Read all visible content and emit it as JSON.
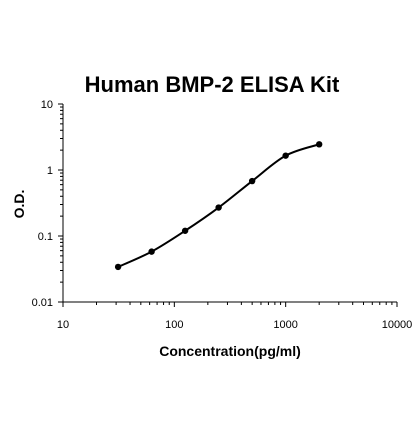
{
  "chart_data": {
    "type": "line",
    "title": "Human BMP-2 ELISA Kit",
    "xlabel": "Concentration(pg/ml)",
    "ylabel": "O.D.",
    "x_scale": "log",
    "y_scale": "log",
    "xlim": [
      10,
      10000
    ],
    "ylim": [
      0.01,
      10
    ],
    "x_ticks": [
      10,
      100,
      1000,
      10000
    ],
    "x_tick_labels": [
      "10",
      "100",
      "1000",
      "10000"
    ],
    "y_ticks": [
      0.01,
      0.1,
      1,
      10
    ],
    "y_tick_labels": [
      "0.01",
      "0.1",
      "1",
      "10"
    ],
    "grid": false,
    "series": [
      {
        "x": [
          31.25,
          62.5,
          125,
          250,
          500,
          1000,
          2000
        ],
        "y": [
          0.034,
          0.058,
          0.12,
          0.27,
          0.68,
          1.65,
          2.45
        ],
        "color": "#000000",
        "markers": true,
        "line": "smooth"
      }
    ]
  }
}
